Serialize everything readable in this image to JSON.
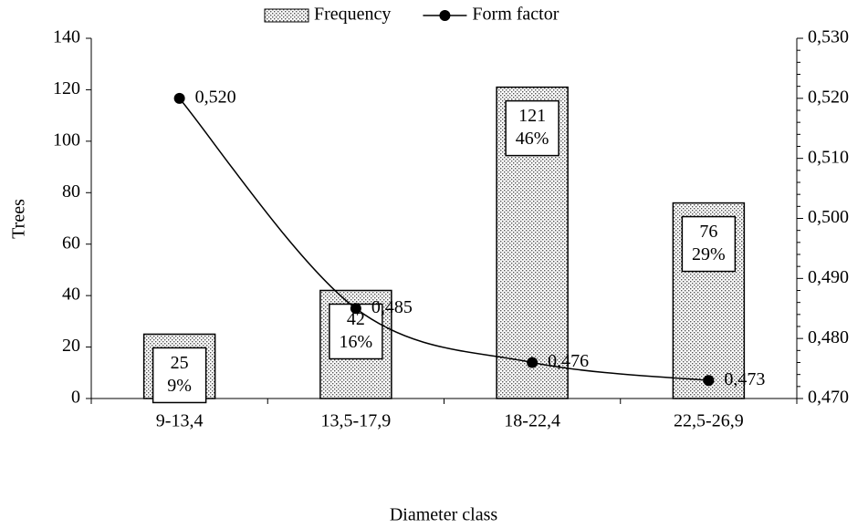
{
  "chart_data": {
    "type": "bar-line",
    "categories": [
      "9-13,4",
      "13,5-17,9",
      "18-22,4",
      "22,5-26,9"
    ],
    "series": [
      {
        "name": "Frequency",
        "type": "bar",
        "color": "#000000",
        "values": [
          25,
          42,
          121,
          76
        ],
        "percent_labels": [
          "9%",
          "16%",
          "46%",
          "29%"
        ]
      },
      {
        "name": "Form factor",
        "type": "line",
        "axis": "y2",
        "color": "#000000",
        "values": [
          0.52,
          0.485,
          0.476,
          0.473
        ],
        "value_labels": [
          "0,520",
          "0,485",
          "0,476",
          "0,473"
        ]
      }
    ],
    "y_label": "Trees",
    "x_label": "Diameter class",
    "ylim": [
      0,
      140
    ],
    "yticks": [
      0,
      20,
      40,
      60,
      80,
      100,
      120,
      140
    ],
    "y2lim": [
      0.47,
      0.53
    ],
    "y2ticks": [
      {
        "value": 0.47,
        "label": "0,470"
      },
      {
        "value": 0.48,
        "label": "0,480"
      },
      {
        "value": 0.49,
        "label": "0,490"
      },
      {
        "value": 0.5,
        "label": "0,500"
      },
      {
        "value": 0.51,
        "label": "0,510"
      },
      {
        "value": 0.52,
        "label": "0,520"
      },
      {
        "value": 0.53,
        "label": "0,530"
      }
    ],
    "legend": "top"
  }
}
